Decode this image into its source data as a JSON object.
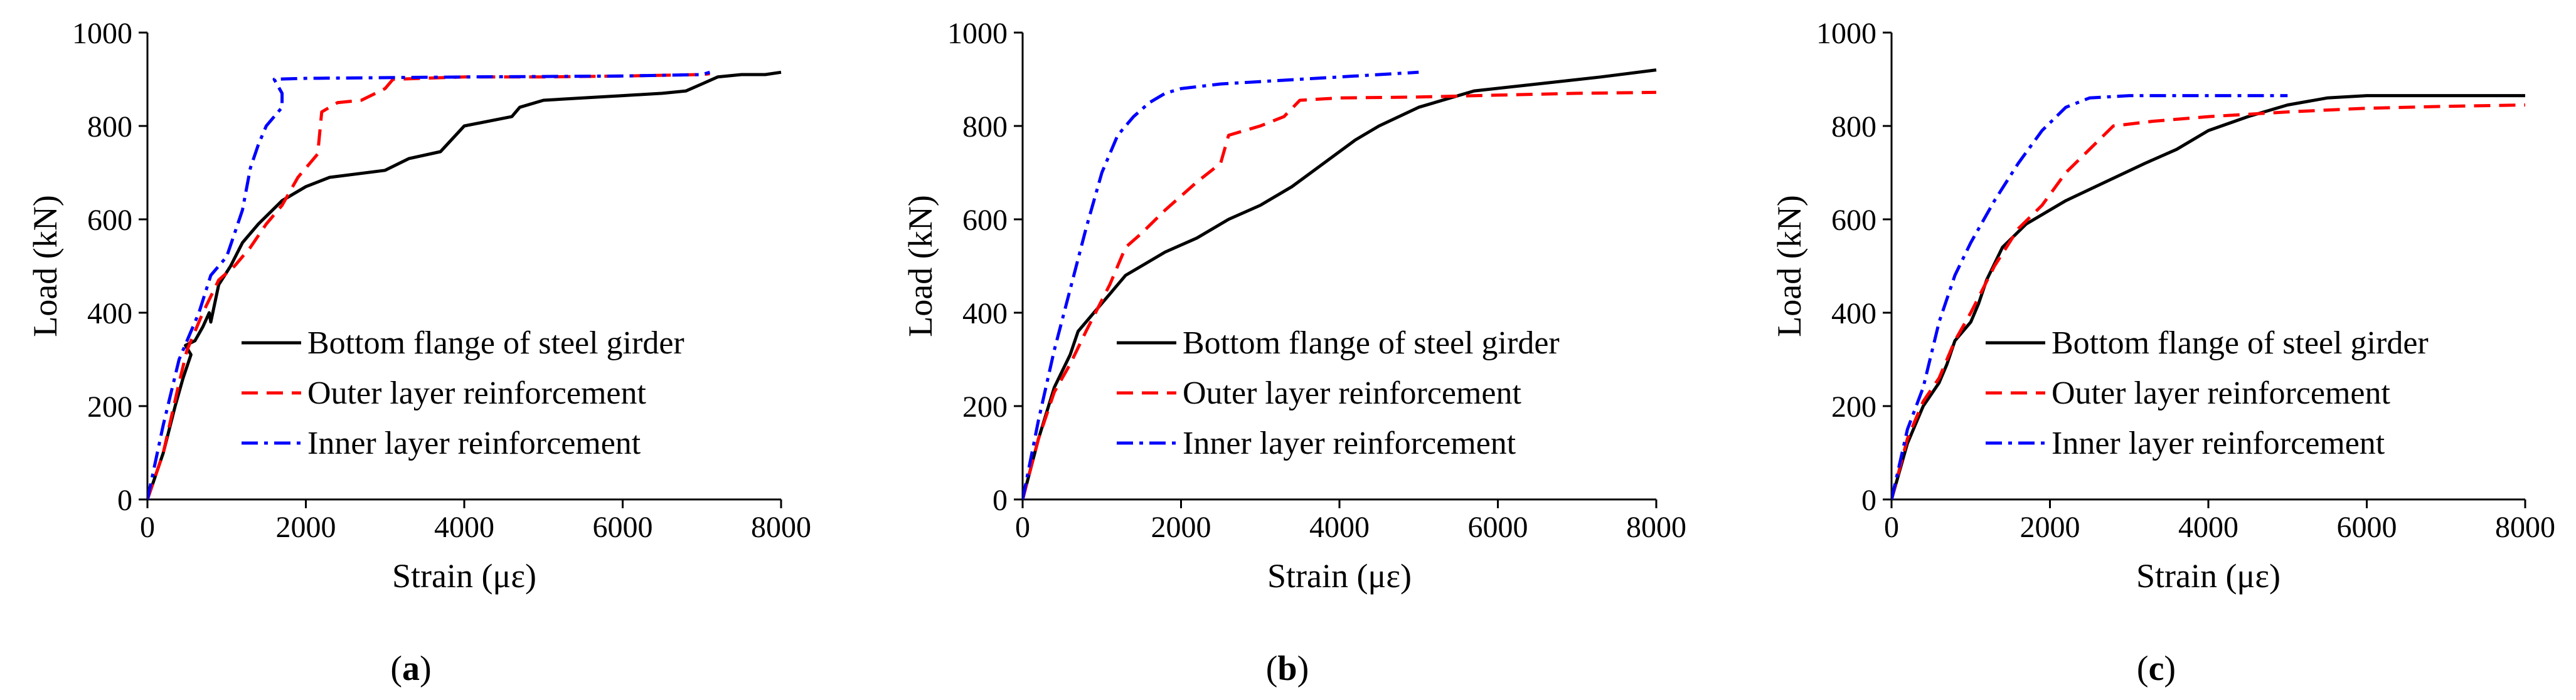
{
  "colors": {
    "bottom_flange": "#000000",
    "outer_layer": "#ff0000",
    "inner_layer": "#0000ff"
  },
  "chart_data": [
    {
      "type": "line",
      "caption_prefix": "(",
      "caption_letter": "a",
      "caption_suffix": ")",
      "xlabel": "Strain (με)",
      "ylabel": "Load (kN)",
      "xlim": [
        0,
        8000
      ],
      "ylim": [
        0,
        1000
      ],
      "xticks": [
        "0",
        "2000",
        "4000",
        "6000",
        "8000"
      ],
      "yticks": [
        "0",
        "200",
        "400",
        "600",
        "800",
        "1000"
      ],
      "legend_position": "lower-right",
      "series": [
        {
          "name": "Bottom flange of steel girder",
          "style": "solid",
          "color": "#000000",
          "points": [
            [
              0,
              0
            ],
            [
              200,
              100
            ],
            [
              350,
              200
            ],
            [
              450,
              260
            ],
            [
              550,
              310
            ],
            [
              480,
              330
            ],
            [
              600,
              340
            ],
            [
              700,
              370
            ],
            [
              780,
              400
            ],
            [
              800,
              380
            ],
            [
              900,
              460
            ],
            [
              1050,
              500
            ],
            [
              1200,
              550
            ],
            [
              1400,
              590
            ],
            [
              1700,
              640
            ],
            [
              2000,
              670
            ],
            [
              2300,
              690
            ],
            [
              3000,
              705
            ],
            [
              3300,
              730
            ],
            [
              3700,
              745
            ],
            [
              4000,
              800
            ],
            [
              4600,
              820
            ],
            [
              4700,
              840
            ],
            [
              5000,
              855
            ],
            [
              5500,
              860
            ],
            [
              6000,
              865
            ],
            [
              6500,
              870
            ],
            [
              6800,
              875
            ],
            [
              7000,
              890
            ],
            [
              7200,
              905
            ],
            [
              7500,
              910
            ],
            [
              7800,
              910
            ],
            [
              8000,
              915
            ]
          ]
        },
        {
          "name": "Outer layer reinforcement",
          "style": "dashed",
          "color": "#ff0000",
          "points": [
            [
              0,
              0
            ],
            [
              200,
              100
            ],
            [
              400,
              250
            ],
            [
              500,
              320
            ],
            [
              700,
              400
            ],
            [
              900,
              470
            ],
            [
              1100,
              500
            ],
            [
              1300,
              540
            ],
            [
              1500,
              590
            ],
            [
              1700,
              630
            ],
            [
              1900,
              690
            ],
            [
              2150,
              740
            ],
            [
              2200,
              830
            ],
            [
              2400,
              850
            ],
            [
              2700,
              855
            ],
            [
              3000,
              880
            ],
            [
              3100,
              900
            ],
            [
              4000,
              905
            ],
            [
              5000,
              905
            ],
            [
              6000,
              907
            ],
            [
              7000,
              910
            ],
            [
              7100,
              912
            ]
          ]
        },
        {
          "name": "Inner layer reinforcement",
          "style": "dashdot",
          "color": "#0000ff",
          "points": [
            [
              0,
              0
            ],
            [
              100,
              80
            ],
            [
              200,
              160
            ],
            [
              300,
              230
            ],
            [
              400,
              300
            ],
            [
              500,
              340
            ],
            [
              650,
              400
            ],
            [
              800,
              480
            ],
            [
              1000,
              520
            ],
            [
              1200,
              620
            ],
            [
              1300,
              710
            ],
            [
              1400,
              760
            ],
            [
              1500,
              800
            ],
            [
              1700,
              840
            ],
            [
              1700,
              870
            ],
            [
              1600,
              900
            ],
            [
              2000,
              902
            ],
            [
              4000,
              905
            ],
            [
              6000,
              907
            ],
            [
              7000,
              910
            ],
            [
              7100,
              915
            ]
          ]
        }
      ],
      "legend": [
        "Bottom flange of steel girder",
        "Outer layer reinforcement",
        "Inner layer reinforcement"
      ]
    },
    {
      "type": "line",
      "caption_prefix": "(",
      "caption_letter": "b",
      "caption_suffix": ")",
      "xlabel": "Strain (με)",
      "ylabel": "Load (kN)",
      "xlim": [
        0,
        8000
      ],
      "ylim": [
        0,
        1000
      ],
      "xticks": [
        "0",
        "2000",
        "4000",
        "6000",
        "8000"
      ],
      "yticks": [
        "0",
        "200",
        "400",
        "600",
        "800",
        "1000"
      ],
      "legend_position": "lower-right",
      "series": [
        {
          "name": "Bottom flange of steel girder",
          "style": "solid",
          "color": "#000000",
          "points": [
            [
              0,
              0
            ],
            [
              200,
              130
            ],
            [
              400,
              240
            ],
            [
              600,
              310
            ],
            [
              700,
              360
            ],
            [
              900,
              400
            ],
            [
              1100,
              440
            ],
            [
              1300,
              480
            ],
            [
              1500,
              500
            ],
            [
              1800,
              530
            ],
            [
              2200,
              560
            ],
            [
              2600,
              600
            ],
            [
              3000,
              630
            ],
            [
              3400,
              670
            ],
            [
              3800,
              720
            ],
            [
              4200,
              770
            ],
            [
              4500,
              800
            ],
            [
              5000,
              840
            ],
            [
              5700,
              875
            ],
            [
              6500,
              890
            ],
            [
              7300,
              905
            ],
            [
              8000,
              920
            ]
          ]
        },
        {
          "name": "Outer layer reinforcement",
          "style": "dashed",
          "color": "#ff0000",
          "points": [
            [
              0,
              0
            ],
            [
              200,
              130
            ],
            [
              400,
              230
            ],
            [
              600,
              290
            ],
            [
              800,
              360
            ],
            [
              1100,
              460
            ],
            [
              1300,
              540
            ],
            [
              1500,
              570
            ],
            [
              1800,
              620
            ],
            [
              2200,
              680
            ],
            [
              2500,
              720
            ],
            [
              2600,
              780
            ],
            [
              3000,
              800
            ],
            [
              3300,
              820
            ],
            [
              3500,
              855
            ],
            [
              4000,
              860
            ],
            [
              5000,
              862
            ],
            [
              6000,
              866
            ],
            [
              7000,
              870
            ],
            [
              8000,
              872
            ]
          ]
        },
        {
          "name": "Inner layer reinforcement",
          "style": "dashdot",
          "color": "#0000ff",
          "points": [
            [
              0,
              0
            ],
            [
              200,
              170
            ],
            [
              400,
              320
            ],
            [
              600,
              450
            ],
            [
              800,
              580
            ],
            [
              1000,
              700
            ],
            [
              1200,
              780
            ],
            [
              1400,
              820
            ],
            [
              1600,
              850
            ],
            [
              1800,
              870
            ],
            [
              2000,
              880
            ],
            [
              2500,
              890
            ],
            [
              3000,
              895
            ],
            [
              3500,
              900
            ],
            [
              4000,
              905
            ],
            [
              4500,
              910
            ],
            [
              5000,
              915
            ]
          ]
        }
      ],
      "legend": [
        "Bottom flange of steel girder",
        "Outer layer reinforcement",
        "Inner layer reinforcement"
      ]
    },
    {
      "type": "line",
      "caption_prefix": "(",
      "caption_letter": "c",
      "caption_suffix": ")",
      "xlabel": "Strain (με)",
      "ylabel": "Load (kN)",
      "xlim": [
        0,
        8000
      ],
      "ylim": [
        0,
        1000
      ],
      "xticks": [
        "0",
        "2000",
        "4000",
        "6000",
        "8000"
      ],
      "yticks": [
        "0",
        "200",
        "400",
        "600",
        "800",
        "1000"
      ],
      "legend_position": "lower-right",
      "series": [
        {
          "name": "Bottom flange of steel girder",
          "style": "solid",
          "color": "#000000",
          "points": [
            [
              0,
              0
            ],
            [
              200,
              120
            ],
            [
              400,
              200
            ],
            [
              600,
              250
            ],
            [
              700,
              290
            ],
            [
              800,
              340
            ],
            [
              1000,
              380
            ],
            [
              1100,
              420
            ],
            [
              1200,
              470
            ],
            [
              1400,
              540
            ],
            [
              1700,
              590
            ],
            [
              2200,
              640
            ],
            [
              2700,
              680
            ],
            [
              3200,
              720
            ],
            [
              3600,
              750
            ],
            [
              4000,
              790
            ],
            [
              4500,
              820
            ],
            [
              5000,
              845
            ],
            [
              5500,
              860
            ],
            [
              6000,
              865
            ],
            [
              7000,
              865
            ],
            [
              8000,
              865
            ]
          ]
        },
        {
          "name": "Outer layer reinforcement",
          "style": "dashed",
          "color": "#ff0000",
          "points": [
            [
              0,
              0
            ],
            [
              200,
              130
            ],
            [
              400,
              210
            ],
            [
              600,
              260
            ],
            [
              800,
              340
            ],
            [
              1000,
              400
            ],
            [
              1300,
              500
            ],
            [
              1600,
              580
            ],
            [
              1900,
              630
            ],
            [
              2200,
              700
            ],
            [
              2500,
              750
            ],
            [
              2800,
              800
            ],
            [
              3300,
              810
            ],
            [
              4000,
              820
            ],
            [
              5000,
              830
            ],
            [
              6000,
              838
            ],
            [
              7000,
              842
            ],
            [
              8000,
              845
            ]
          ]
        },
        {
          "name": "Inner layer reinforcement",
          "style": "dashdot",
          "color": "#0000ff",
          "points": [
            [
              0,
              0
            ],
            [
              200,
              150
            ],
            [
              400,
              240
            ],
            [
              600,
              380
            ],
            [
              800,
              480
            ],
            [
              1000,
              550
            ],
            [
              1300,
              640
            ],
            [
              1600,
              720
            ],
            [
              1900,
              790
            ],
            [
              2200,
              840
            ],
            [
              2500,
              860
            ],
            [
              3000,
              865
            ],
            [
              4000,
              865
            ],
            [
              5000,
              865
            ]
          ]
        }
      ],
      "legend": [
        "Bottom flange of steel girder",
        "Outer layer reinforcement",
        "Inner layer reinforcement"
      ]
    }
  ]
}
